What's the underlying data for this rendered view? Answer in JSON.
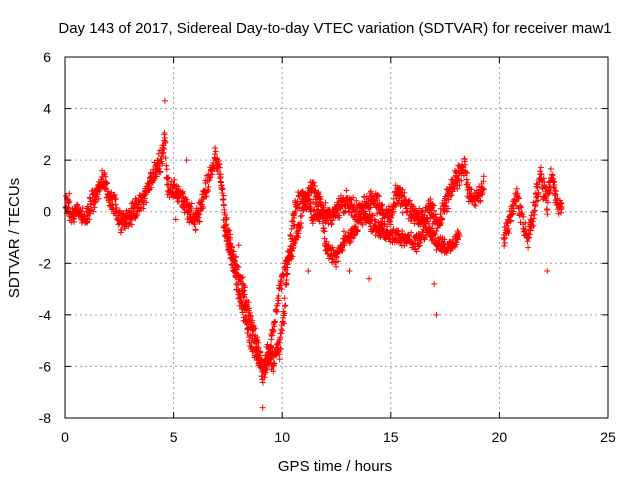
{
  "chart_data": {
    "type": "scatter",
    "title": "Day 143 of 2017, Sidereal Day-to-day VTEC variation (SDTVAR) for receiver maw1",
    "xlabel": "GPS time / hours",
    "ylabel": "SDTVAR / TECUs",
    "xlim": [
      0,
      25
    ],
    "ylim": [
      -8,
      6
    ],
    "xticks": [
      "0",
      "5",
      "10",
      "15",
      "20",
      "25"
    ],
    "yticks": [
      "-8",
      "-6",
      "-4",
      "-2",
      "0",
      "2",
      "4",
      "6"
    ],
    "grid": true,
    "marker": "+",
    "color": "#ff0000",
    "series": [
      {
        "name": "SDTVAR",
        "trace": [
          [
            0.0,
            0.5
          ],
          [
            0.3,
            -0.2
          ],
          [
            0.6,
            0.1
          ],
          [
            0.9,
            -0.4
          ],
          [
            1.2,
            0.3
          ],
          [
            1.5,
            0.8
          ],
          [
            1.8,
            1.3
          ],
          [
            2.0,
            0.6
          ],
          [
            2.3,
            0.2
          ],
          [
            2.6,
            -0.5
          ],
          [
            2.9,
            -0.2
          ],
          [
            3.2,
            0.0
          ],
          [
            3.5,
            0.4
          ],
          [
            3.8,
            0.9
          ],
          [
            4.1,
            1.4
          ],
          [
            4.4,
            2.0
          ],
          [
            4.6,
            2.8
          ],
          [
            4.7,
            1.0
          ],
          [
            5.3,
            0.6
          ],
          [
            5.6,
            0.2
          ],
          [
            6.0,
            -0.4
          ],
          [
            6.3,
            0.3
          ],
          [
            6.6,
            1.2
          ],
          [
            6.9,
            2.1
          ],
          [
            7.1,
            1.6
          ],
          [
            7.3,
            0.4
          ],
          [
            7.5,
            -0.8
          ],
          [
            7.7,
            -1.6
          ],
          [
            8.0,
            -2.4
          ],
          [
            8.3,
            -3.3
          ],
          [
            8.6,
            -4.4
          ],
          [
            8.9,
            -5.3
          ],
          [
            9.1,
            -6.4
          ],
          [
            9.3,
            -5.6
          ],
          [
            9.6,
            -5.8
          ],
          [
            9.9,
            -5.2
          ],
          [
            10.1,
            -3.8
          ],
          [
            10.3,
            -1.8
          ],
          [
            10.5,
            -0.4
          ],
          [
            10.7,
            0.3
          ],
          [
            10.9,
            0.7
          ],
          [
            11.2,
            0.3
          ],
          [
            11.5,
            -0.2
          ],
          [
            11.8,
            0.1
          ],
          [
            12.2,
            -0.3
          ],
          [
            12.6,
            0.2
          ],
          [
            13.0,
            0.4
          ],
          [
            13.4,
            -0.1
          ],
          [
            13.8,
            0.2
          ],
          [
            14.2,
            0.5
          ],
          [
            14.6,
            0.0
          ],
          [
            15.0,
            -0.2
          ],
          [
            15.3,
            0.8
          ],
          [
            15.6,
            0.4
          ],
          [
            16.0,
            0.0
          ],
          [
            16.4,
            -0.4
          ],
          [
            16.8,
            0.2
          ],
          [
            17.2,
            -0.5
          ],
          [
            17.5,
            0.3
          ],
          [
            17.8,
            0.9
          ],
          [
            18.1,
            1.4
          ],
          [
            18.4,
            1.8
          ],
          [
            18.6,
            0.6
          ],
          [
            19.0,
            0.5
          ],
          [
            19.3,
            1.0
          ],
          [
            20.2,
            -1.0
          ],
          [
            20.5,
            -0.2
          ],
          [
            20.8,
            0.7
          ],
          [
            21.1,
            -0.4
          ],
          [
            21.3,
            -1.2
          ],
          [
            21.9,
            1.4
          ],
          [
            22.2,
            0.4
          ],
          [
            22.4,
            1.5
          ],
          [
            22.7,
            0.2
          ],
          [
            22.9,
            0.1
          ]
        ],
        "secondary_trace": [
          [
            7.3,
            -0.5
          ],
          [
            7.6,
            -1.6
          ],
          [
            7.9,
            -2.8
          ],
          [
            8.2,
            -3.8
          ],
          [
            8.5,
            -4.8
          ],
          [
            8.8,
            -5.6
          ],
          [
            9.2,
            -6.2
          ],
          [
            9.5,
            -5.0
          ],
          [
            9.7,
            -4.0
          ],
          [
            9.9,
            -3.0
          ],
          [
            10.1,
            -2.2
          ],
          [
            10.4,
            -1.6
          ],
          [
            10.8,
            -0.6
          ],
          [
            11.1,
            0.6
          ],
          [
            11.4,
            1.0
          ],
          [
            11.8,
            0.4
          ],
          [
            12.0,
            -1.4
          ],
          [
            12.5,
            -1.8
          ],
          [
            12.9,
            -1.0
          ],
          [
            13.3,
            -0.8
          ],
          [
            13.8,
            -0.2
          ],
          [
            14.3,
            -0.6
          ],
          [
            14.9,
            -0.9
          ],
          [
            15.5,
            -1.0
          ],
          [
            16.2,
            -1.2
          ],
          [
            16.7,
            -0.6
          ],
          [
            17.2,
            -1.3
          ],
          [
            17.7,
            -1.4
          ],
          [
            18.2,
            -0.9
          ]
        ],
        "outliers": [
          [
            4.6,
            4.3
          ],
          [
            5.1,
            -0.3
          ],
          [
            5.6,
            2.0
          ],
          [
            8.0,
            -1.3
          ],
          [
            9.1,
            -7.6
          ],
          [
            11.2,
            -2.3
          ],
          [
            13.1,
            -2.3
          ],
          [
            14.0,
            -2.6
          ],
          [
            17.1,
            -4.0
          ],
          [
            17.0,
            -2.8
          ],
          [
            22.2,
            -2.3
          ],
          [
            0.2,
            0.7
          ]
        ]
      }
    ]
  }
}
